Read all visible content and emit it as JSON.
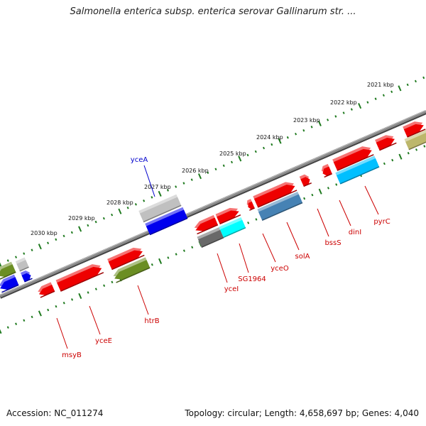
{
  "title": "Salmonella enterica subsp. enterica serovar Gallinarum str. ...",
  "footer": {
    "accession": "Accession: NC_011274",
    "summary": "Topology: circular; Length: 4,658,697 bp; Genes: 4,040"
  },
  "colors": {
    "backbone": "#777777",
    "tick": "#1f7a1f",
    "label_red": "#cc0000",
    "label_blue": "#0000cc"
  },
  "scale_labels": [
    "2021 kbp",
    "2022 kbp",
    "2023 kbp",
    "2024 kbp",
    "2025 kbp",
    "2026 kbp",
    "2027 kbp",
    "2028 kbp",
    "2029 kbp",
    "2030 kbp"
  ],
  "gene_labels": [
    {
      "text": "yceA",
      "color": "#0000cc"
    },
    {
      "text": "pyrC",
      "color": "#cc0000"
    },
    {
      "text": "dinI",
      "color": "#cc0000"
    },
    {
      "text": "bssS",
      "color": "#cc0000"
    },
    {
      "text": "solA",
      "color": "#cc0000"
    },
    {
      "text": "yceO",
      "color": "#cc0000"
    },
    {
      "text": "SG1964",
      "color": "#cc0000"
    },
    {
      "text": "yceI",
      "color": "#cc0000"
    },
    {
      "text": "htrB",
      "color": "#cc0000"
    },
    {
      "text": "yceE",
      "color": "#cc0000"
    },
    {
      "text": "msyB",
      "color": "#cc0000"
    }
  ],
  "features": [
    {
      "color": "#6b8e23"
    },
    {
      "color": "#c0c0c0"
    },
    {
      "color": "#0000ee"
    },
    {
      "color": "#0000ee"
    },
    {
      "color": "#ee0000"
    },
    {
      "color": "#ee0000"
    },
    {
      "color": "#ee0000"
    },
    {
      "color": "#6b8e23"
    },
    {
      "color": "#c0c0c0"
    },
    {
      "color": "#0000ee"
    },
    {
      "color": "#ee0000"
    },
    {
      "color": "#ee0000"
    },
    {
      "color": "#696969"
    },
    {
      "color": "#00ffff"
    },
    {
      "color": "#ee0000"
    },
    {
      "color": "#ee0000"
    },
    {
      "color": "#4682b4"
    },
    {
      "color": "#ee0000"
    },
    {
      "color": "#ee0000"
    },
    {
      "color": "#ee0000"
    },
    {
      "color": "#00bfff"
    },
    {
      "color": "#ee0000"
    },
    {
      "color": "#ee0000"
    },
    {
      "color": "#bdb76b"
    }
  ]
}
